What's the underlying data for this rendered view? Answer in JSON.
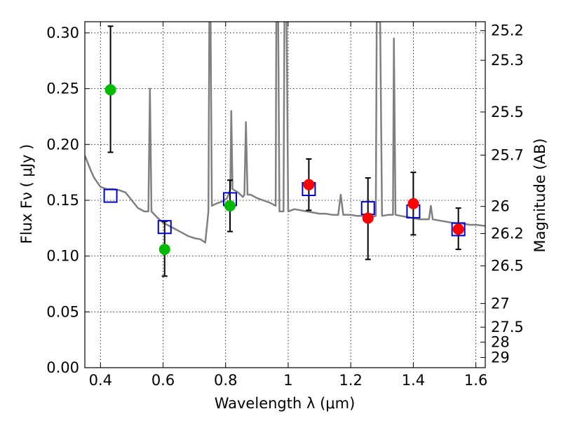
{
  "chart_data": {
    "type": "scatter",
    "xlabel": "Wavelength  λ (μm)",
    "ylabel": "Flux  Fν  ( μJy )",
    "ylabel_right": "Magnitude (AB)",
    "xlim": [
      0.35,
      1.63
    ],
    "ylim": [
      0.0,
      0.31
    ],
    "grid": true,
    "x_ticks": [
      0.4,
      0.6,
      0.8,
      1.0,
      1.2,
      1.4,
      1.6
    ],
    "x_tick_labels": [
      "0.4",
      "0.6",
      "0.8",
      "1",
      "1.2",
      "1.4",
      "1.6"
    ],
    "y_ticks": [
      0.0,
      0.05,
      0.1,
      0.15,
      0.2,
      0.25,
      0.3
    ],
    "y_tick_labels": [
      "0.00",
      "0.05",
      "0.10",
      "0.15",
      "0.20",
      "0.25",
      "0.30"
    ],
    "mag_ticks": [
      {
        "label": "25.2",
        "flux": 0.302
      },
      {
        "label": "25.3",
        "flux": 0.2754
      },
      {
        "label": "25.5",
        "flux": 0.2291
      },
      {
        "label": "25.7",
        "flux": 0.1905
      },
      {
        "label": "26",
        "flux": 0.1445
      },
      {
        "label": "26.2",
        "flux": 0.1202
      },
      {
        "label": "26.5",
        "flux": 0.0912
      },
      {
        "label": "27",
        "flux": 0.0575
      },
      {
        "label": "27.5",
        "flux": 0.0363
      },
      {
        "label": "28",
        "flux": 0.0229
      },
      {
        "label": "29",
        "flux": 0.0091
      }
    ],
    "spectrum": {
      "color": "#808080",
      "points": [
        [
          0.35,
          0.19
        ],
        [
          0.36,
          0.183
        ],
        [
          0.37,
          0.176
        ],
        [
          0.38,
          0.17
        ],
        [
          0.39,
          0.166
        ],
        [
          0.4,
          0.162
        ],
        [
          0.42,
          0.16
        ],
        [
          0.44,
          0.16
        ],
        [
          0.46,
          0.159
        ],
        [
          0.48,
          0.157
        ],
        [
          0.5,
          0.15
        ],
        [
          0.52,
          0.143
        ],
        [
          0.54,
          0.14
        ],
        [
          0.553,
          0.14
        ],
        [
          0.558,
          0.25
        ],
        [
          0.563,
          0.14
        ],
        [
          0.58,
          0.135
        ],
        [
          0.6,
          0.13
        ],
        [
          0.62,
          0.127
        ],
        [
          0.64,
          0.124
        ],
        [
          0.66,
          0.121
        ],
        [
          0.68,
          0.118
        ],
        [
          0.7,
          0.116
        ],
        [
          0.72,
          0.115
        ],
        [
          0.735,
          0.112
        ],
        [
          0.745,
          0.14
        ],
        [
          0.748,
          0.31
        ],
        [
          0.752,
          0.31
        ],
        [
          0.756,
          0.145
        ],
        [
          0.77,
          0.147
        ],
        [
          0.79,
          0.149
        ],
        [
          0.805,
          0.152
        ],
        [
          0.815,
          0.16
        ],
        [
          0.818,
          0.23
        ],
        [
          0.822,
          0.16
        ],
        [
          0.84,
          0.157
        ],
        [
          0.855,
          0.153
        ],
        [
          0.86,
          0.155
        ],
        [
          0.865,
          0.22
        ],
        [
          0.87,
          0.155
        ],
        [
          0.88,
          0.155
        ],
        [
          0.9,
          0.152
        ],
        [
          0.92,
          0.15
        ],
        [
          0.94,
          0.148
        ],
        [
          0.96,
          0.145
        ],
        [
          0.962,
          0.31
        ],
        [
          0.968,
          0.31
        ],
        [
          0.972,
          0.14
        ],
        [
          0.985,
          0.14
        ],
        [
          0.988,
          0.31
        ],
        [
          0.995,
          0.31
        ],
        [
          1.0,
          0.14
        ],
        [
          1.02,
          0.142
        ],
        [
          1.04,
          0.141
        ],
        [
          1.06,
          0.14
        ],
        [
          1.08,
          0.139
        ],
        [
          1.1,
          0.138
        ],
        [
          1.12,
          0.138
        ],
        [
          1.14,
          0.137
        ],
        [
          1.16,
          0.137
        ],
        [
          1.168,
          0.155
        ],
        [
          1.176,
          0.137
        ],
        [
          1.2,
          0.137
        ],
        [
          1.22,
          0.136
        ],
        [
          1.24,
          0.136
        ],
        [
          1.26,
          0.135
        ],
        [
          1.28,
          0.136
        ],
        [
          1.283,
          0.31
        ],
        [
          1.294,
          0.31
        ],
        [
          1.3,
          0.136
        ],
        [
          1.32,
          0.137
        ],
        [
          1.335,
          0.137
        ],
        [
          1.338,
          0.295
        ],
        [
          1.343,
          0.137
        ],
        [
          1.36,
          0.136
        ],
        [
          1.38,
          0.135
        ],
        [
          1.4,
          0.134
        ],
        [
          1.42,
          0.133
        ],
        [
          1.44,
          0.133
        ],
        [
          1.45,
          0.133
        ],
        [
          1.456,
          0.145
        ],
        [
          1.462,
          0.133
        ],
        [
          1.48,
          0.132
        ],
        [
          1.5,
          0.131
        ],
        [
          1.52,
          0.13
        ],
        [
          1.54,
          0.129
        ],
        [
          1.56,
          0.129
        ],
        [
          1.58,
          0.128
        ],
        [
          1.6,
          0.128
        ],
        [
          1.63,
          0.127
        ]
      ]
    },
    "model_photometry": {
      "marker": "open-square",
      "color": "#0000cc",
      "points": [
        [
          0.432,
          0.154
        ],
        [
          0.605,
          0.126
        ],
        [
          0.814,
          0.151
        ],
        [
          1.066,
          0.16
        ],
        [
          1.255,
          0.143
        ],
        [
          1.4,
          0.14
        ],
        [
          1.544,
          0.124
        ]
      ]
    },
    "observed_green": {
      "marker": "filled-circle",
      "color": "#00bb00",
      "points": [
        {
          "x": 0.432,
          "y": 0.249,
          "ylo": 0.193,
          "yhi": 0.306
        },
        {
          "x": 0.605,
          "y": 0.106,
          "ylo": 0.082,
          "yhi": 0.131
        },
        {
          "x": 0.814,
          "y": 0.145,
          "ylo": 0.122,
          "yhi": 0.168
        }
      ]
    },
    "observed_red": {
      "marker": "filled-circle",
      "color": "#ff0000",
      "points": [
        {
          "x": 1.066,
          "y": 0.164,
          "ylo": 0.141,
          "yhi": 0.187
        },
        {
          "x": 1.255,
          "y": 0.134,
          "ylo": 0.097,
          "yhi": 0.17
        },
        {
          "x": 1.4,
          "y": 0.147,
          "ylo": 0.119,
          "yhi": 0.175
        },
        {
          "x": 1.544,
          "y": 0.124,
          "ylo": 0.106,
          "yhi": 0.143
        }
      ]
    }
  }
}
